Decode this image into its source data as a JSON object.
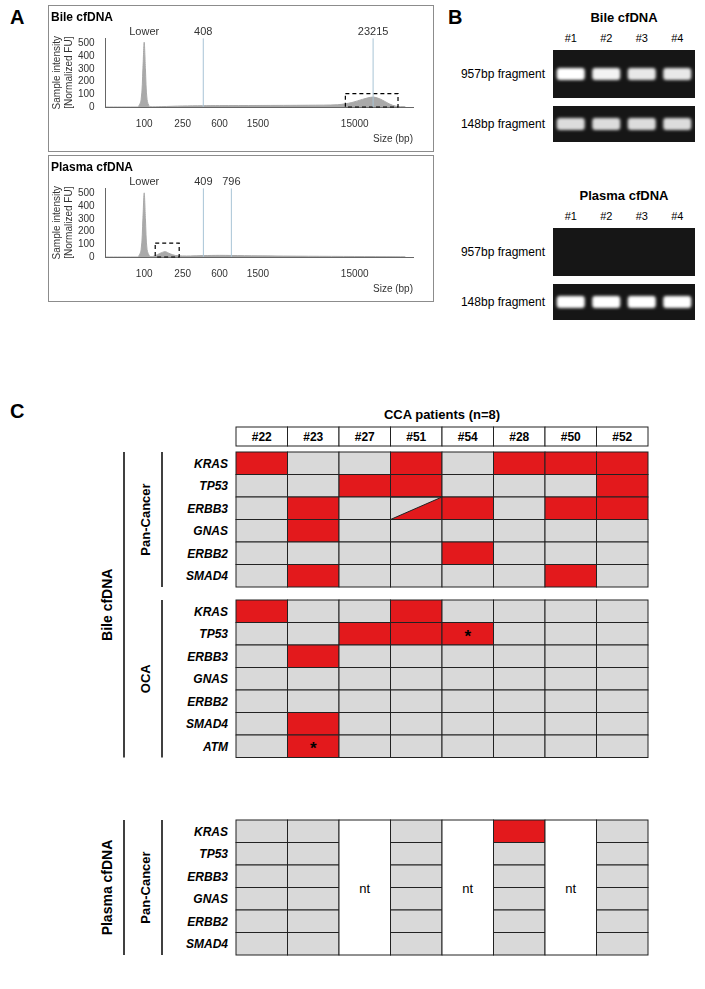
{
  "panel_labels": [
    "A",
    "B",
    "C"
  ],
  "chart_data": [
    {
      "type": "area",
      "title": "Bile cfDNA",
      "x_label": "Size (bp)",
      "y_label": [
        "Sample intensity",
        "[Normalized FU]"
      ],
      "log": "x",
      "grid": false,
      "color": "#a9a9a9",
      "xlim": [
        40,
        60000
      ],
      "xticks": [
        100,
        250,
        600,
        1500,
        15000
      ],
      "ylim": [
        0,
        540
      ],
      "yticks": [
        0,
        100,
        200,
        300,
        400,
        500
      ],
      "x": [
        40,
        85,
        93,
        97,
        100,
        103,
        107,
        115,
        150,
        250,
        400,
        600,
        1500,
        5000,
        10000,
        14000,
        18000,
        23215,
        28000,
        34000,
        40000,
        50000
      ],
      "values": [
        0,
        0,
        60,
        300,
        510,
        300,
        60,
        2,
        3,
        8,
        10,
        11,
        12,
        14,
        18,
        35,
        60,
        78,
        60,
        25,
        6,
        2
      ],
      "peak_labels": [
        {
          "x": 100,
          "text": "Lower"
        }
      ],
      "markers": [
        408,
        23215
      ],
      "highlight": {
        "x": [
          12000,
          42000
        ],
        "y": [
          0,
          105
        ]
      }
    },
    {
      "type": "area",
      "title": "Plasma cfDNA",
      "x_label": "Size (bp)",
      "y_label": [
        "Sample intensity",
        "[Normalized FU]"
      ],
      "log": "x",
      "grid": false,
      "color": "#a9a9a9",
      "xlim": [
        40,
        60000
      ],
      "xticks": [
        100,
        250,
        600,
        1500,
        15000
      ],
      "ylim": [
        0,
        540
      ],
      "yticks": [
        0,
        100,
        200,
        300,
        400,
        500
      ],
      "x": [
        40,
        85,
        93,
        97,
        100,
        103,
        107,
        115,
        130,
        145,
        165,
        185,
        210,
        250,
        300,
        409,
        600,
        796,
        1500,
        5000,
        15000,
        40000,
        50000
      ],
      "values": [
        0,
        0,
        60,
        300,
        505,
        300,
        60,
        4,
        10,
        28,
        42,
        25,
        12,
        8,
        8,
        11,
        13,
        12,
        9,
        6,
        4,
        2,
        1
      ],
      "peak_labels": [
        {
          "x": 100,
          "text": "Lower"
        }
      ],
      "markers": [
        409,
        796
      ],
      "highlight": {
        "x": [
          130,
          230
        ],
        "y": [
          0,
          110
        ]
      }
    }
  ],
  "gel": [
    {
      "title": "Bile cfDNA",
      "lanes": [
        "#1",
        "#2",
        "#3",
        "#4"
      ],
      "bands": [
        {
          "label": "957bp fragment",
          "intensity": [
            1,
            0.95,
            0.9,
            0.9
          ]
        },
        {
          "label": "148bp fragment",
          "intensity": [
            0.85,
            0.85,
            0.85,
            0.85
          ]
        }
      ]
    },
    {
      "title": "Plasma cfDNA",
      "lanes": [
        "#1",
        "#2",
        "#3",
        "#4"
      ],
      "bands": [
        {
          "label": "957bp fragment",
          "intensity": [
            0,
            0,
            0,
            0
          ]
        },
        {
          "label": "148bp fragment",
          "intensity": [
            1,
            1,
            1,
            1
          ]
        }
      ]
    }
  ],
  "mutation_grid": {
    "title": "CCA patients (n=8)",
    "patients": [
      "#22",
      "#23",
      "#27",
      "#51",
      "#54",
      "#28",
      "#50",
      "#52"
    ],
    "color": "#e3191c",
    "not_tested_label": "nt",
    "groups": [
      {
        "label": "Bile cfDNA",
        "sections": [
          {
            "label": "Pan-Cancer",
            "genes": [
              "KRAS",
              "TP53",
              "ERBB3",
              "GNAS",
              "ERBB2",
              "SMAD4"
            ],
            "cells": [
              [
                1,
                0,
                0,
                1,
                0,
                1,
                1,
                1
              ],
              [
                0,
                0,
                1,
                1,
                0,
                0,
                0,
                1
              ],
              [
                0,
                1,
                0,
                0.5,
                1,
                0,
                1,
                1
              ],
              [
                0,
                1,
                0,
                0,
                0,
                0,
                0,
                0
              ],
              [
                0,
                0,
                0,
                0,
                1,
                0,
                0,
                0
              ],
              [
                0,
                1,
                0,
                0,
                0,
                0,
                1,
                0
              ]
            ],
            "not_tested": [],
            "marks": []
          },
          {
            "label": "OCA",
            "genes": [
              "KRAS",
              "TP53",
              "ERBB3",
              "GNAS",
              "ERBB2",
              "SMAD4",
              "ATM"
            ],
            "cells": [
              [
                1,
                0,
                0,
                1,
                0,
                0,
                0,
                0
              ],
              [
                0,
                0,
                1,
                1,
                1,
                0,
                0,
                0
              ],
              [
                0,
                1,
                0,
                0,
                0,
                0,
                0,
                0
              ],
              [
                0,
                0,
                0,
                0,
                0,
                0,
                0,
                0
              ],
              [
                0,
                0,
                0,
                0,
                0,
                0,
                0,
                0
              ],
              [
                0,
                1,
                0,
                0,
                0,
                0,
                0,
                0
              ],
              [
                0,
                1,
                0,
                0,
                0,
                0,
                0,
                0
              ]
            ],
            "not_tested": [],
            "marks": [
              {
                "gene": "TP53",
                "patient": "#54",
                "text": "*"
              },
              {
                "gene": "ATM",
                "patient": "#23",
                "text": "*"
              }
            ]
          }
        ]
      },
      {
        "label": "Plasma cfDNA",
        "sections": [
          {
            "label": "Pan-Cancer",
            "genes": [
              "KRAS",
              "TP53",
              "ERBB3",
              "GNAS",
              "ERBB2",
              "SMAD4"
            ],
            "cells": [
              [
                0,
                0,
                null,
                0,
                null,
                1,
                null,
                0
              ],
              [
                0,
                0,
                null,
                0,
                null,
                0,
                null,
                0
              ],
              [
                0,
                0,
                null,
                0,
                null,
                0,
                null,
                0
              ],
              [
                0,
                0,
                null,
                0,
                null,
                0,
                null,
                0
              ],
              [
                0,
                0,
                null,
                0,
                null,
                0,
                null,
                0
              ],
              [
                0,
                0,
                null,
                0,
                null,
                0,
                null,
                0
              ]
            ],
            "not_tested": [
              "#27",
              "#54",
              "#50"
            ],
            "marks": []
          }
        ]
      }
    ]
  }
}
